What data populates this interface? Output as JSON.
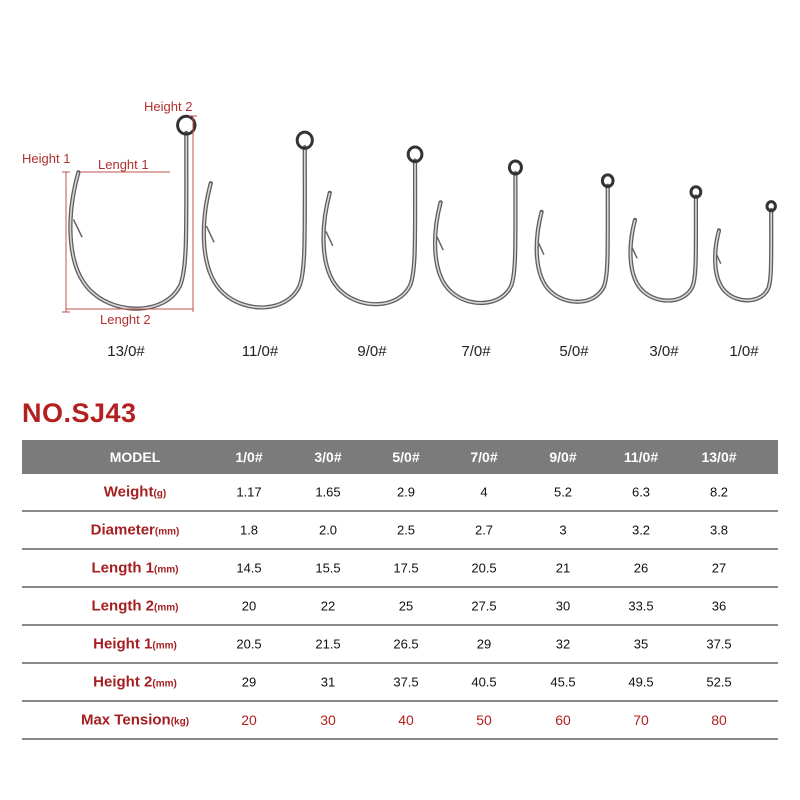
{
  "diagram": {
    "dimension_labels": {
      "height1": "Height 1",
      "height2": "Height 2",
      "length1": "Lenght 1",
      "length2": "Lenght 2"
    },
    "hook_sizes": [
      "13/0#",
      "11/0#",
      "9/0#",
      "7/0#",
      "5/0#",
      "3/0#",
      "1/0#"
    ],
    "colors": {
      "annotation": "#b0302f",
      "hook": "#6b6b6b"
    }
  },
  "title": "NO.SJ43",
  "table": {
    "header": {
      "label": "MODEL",
      "columns": [
        "1/0#",
        "3/0#",
        "5/0#",
        "7/0#",
        "9/0#",
        "11/0#",
        "13/0#"
      ]
    },
    "rows": [
      {
        "label": "Weight",
        "unit": "(g)",
        "values": [
          "1.17",
          "1.65",
          "2.9",
          "4",
          "5.2",
          "6.3",
          "8.2"
        ]
      },
      {
        "label": "Diameter",
        "unit": "(mm)",
        "values": [
          "1.8",
          "2.0",
          "2.5",
          "2.7",
          "3",
          "3.2",
          "3.8"
        ]
      },
      {
        "label": "Length 1",
        "unit": "(mm)",
        "values": [
          "14.5",
          "15.5",
          "17.5",
          "20.5",
          "21",
          "26",
          "27"
        ]
      },
      {
        "label": "Length 2",
        "unit": "(mm)",
        "values": [
          "20",
          "22",
          "25",
          "27.5",
          "30",
          "33.5",
          "36"
        ]
      },
      {
        "label": "Height 1",
        "unit": "(mm)",
        "values": [
          "20.5",
          "21.5",
          "26.5",
          "29",
          "32",
          "35",
          "37.5"
        ]
      },
      {
        "label": "Height 2",
        "unit": "(mm)",
        "values": [
          "29",
          "31",
          "37.5",
          "40.5",
          "45.5",
          "49.5",
          "52.5"
        ]
      },
      {
        "label": "Max Tension",
        "unit": "(kg)",
        "values": [
          "20",
          "30",
          "40",
          "50",
          "60",
          "70",
          "80"
        ]
      }
    ],
    "colors": {
      "header_bg": "#7b7b7b",
      "label": "#a51f22",
      "tension": "#b3201f"
    }
  }
}
